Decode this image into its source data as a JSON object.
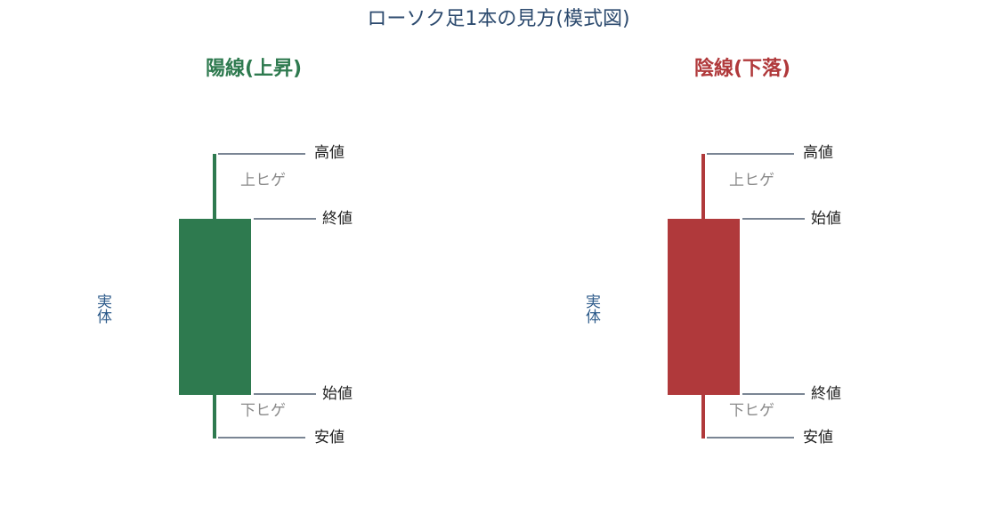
{
  "title": "ローソク足1本の見方(模式図)",
  "panels": [
    {
      "title": "陽線(上昇)",
      "color": "#2e7a4f",
      "high": "高値",
      "top": "終値",
      "bottom": "始値",
      "low": "安値",
      "upper_wick": "上ヒゲ",
      "lower_wick": "下ヒゲ",
      "body": "実体"
    },
    {
      "title": "陰線(下落)",
      "color": "#b0393b",
      "high": "高値",
      "top": "始値",
      "bottom": "終値",
      "low": "安値",
      "upper_wick": "上ヒゲ",
      "lower_wick": "下ヒゲ",
      "body": "実体"
    }
  ]
}
